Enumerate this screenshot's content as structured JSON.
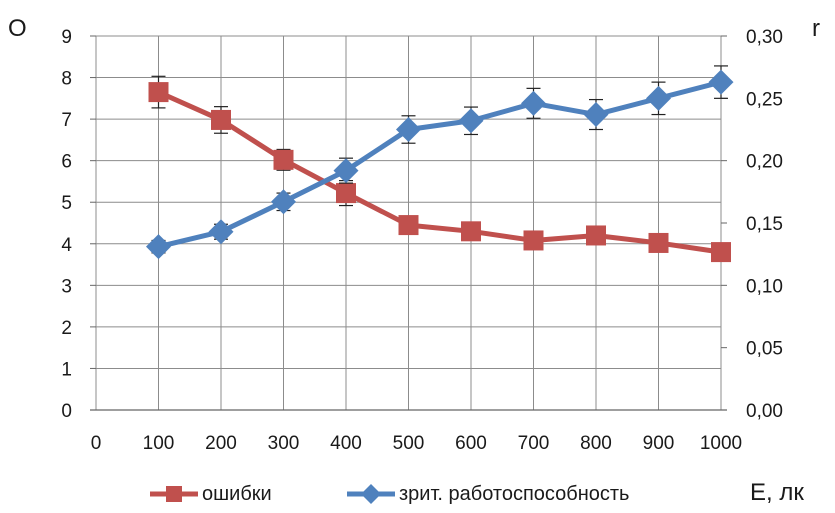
{
  "chart_data": {
    "type": "line",
    "title": "",
    "xlabel": "E, лк",
    "ylabel_left": "О",
    "ylabel_right": "r",
    "x_ticks": [
      "0",
      "100",
      "200",
      "300",
      "400",
      "500",
      "600",
      "700",
      "800",
      "900",
      "1000"
    ],
    "y_left_ticks": [
      "0",
      "1",
      "2",
      "3",
      "4",
      "5",
      "6",
      "7",
      "8",
      "9"
    ],
    "y_right_ticks": [
      "0,00",
      "0,05",
      "0,10",
      "0,15",
      "0,20",
      "0,25",
      "0,30"
    ],
    "x_range": [
      0,
      1000
    ],
    "y_left_range": [
      0,
      9
    ],
    "y_right_range": [
      0,
      0.3
    ],
    "grid": "horizontal and vertical",
    "legend_position": "bottom",
    "series": [
      {
        "name": "ошибки",
        "axis": "left",
        "marker": "square",
        "color": "#C0504D",
        "x": [
          100,
          200,
          300,
          400,
          500,
          600,
          700,
          800,
          900,
          1000
        ],
        "y": [
          7.65,
          6.98,
          6.02,
          5.22,
          4.45,
          4.3,
          4.08,
          4.2,
          4.02,
          3.8
        ],
        "error": [
          0.38,
          0.32,
          0.25,
          0.3,
          0.0,
          0.0,
          0.0,
          0.0,
          0.0,
          0.0
        ]
      },
      {
        "name": "зрит. работоспособность",
        "axis": "right",
        "marker": "diamond",
        "color": "#4F81BD",
        "x": [
          100,
          200,
          300,
          400,
          500,
          600,
          700,
          800,
          900,
          1000
        ],
        "y": [
          0.131,
          0.143,
          0.167,
          0.192,
          0.225,
          0.232,
          0.246,
          0.237,
          0.25,
          0.263
        ],
        "error": [
          0.005,
          0.006,
          0.007,
          0.01,
          0.011,
          0.011,
          0.012,
          0.012,
          0.013,
          0.013
        ]
      }
    ]
  }
}
